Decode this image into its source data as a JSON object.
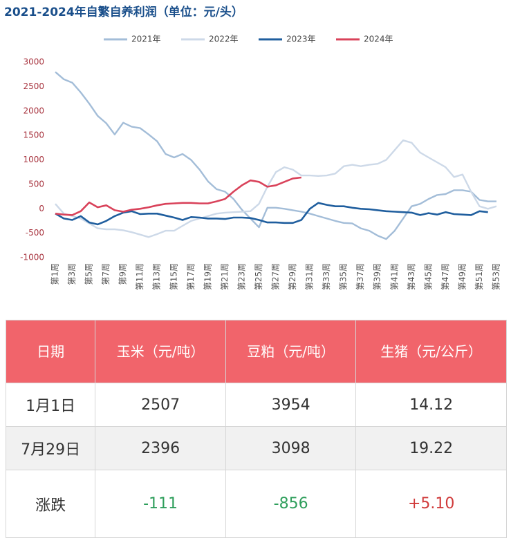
{
  "chart_data": {
    "type": "line",
    "title": "2021-2024年自繁自养利润（单位：元/头）",
    "categories": [
      "第1周",
      null,
      "第3周",
      null,
      "第5周",
      null,
      "第7周",
      null,
      "第9周",
      null,
      "第11周",
      null,
      "第13周",
      null,
      "第15周",
      null,
      "第17周",
      null,
      "第19周",
      null,
      "第21周",
      null,
      "第23周",
      null,
      "第25周",
      null,
      "第27周",
      null,
      "第29周",
      null,
      "第31周",
      null,
      "第33周",
      null,
      "第35周",
      null,
      "第37周",
      null,
      "第39周",
      null,
      "第41周",
      null,
      "第43周",
      null,
      "第45周",
      null,
      "第47周",
      null,
      "第49周",
      null,
      "第51周",
      null,
      "第53周"
    ],
    "series": [
      {
        "name": "2021年",
        "color": "#a3bdd8",
        "values": [
          2800,
          2650,
          2580,
          2380,
          2150,
          1900,
          1750,
          1520,
          1760,
          1680,
          1650,
          1520,
          1380,
          1120,
          1050,
          1120,
          1000,
          800,
          560,
          400,
          350,
          200,
          -20,
          -200,
          -380,
          20,
          20,
          0,
          -30,
          -60,
          -100,
          -150,
          -200,
          -250,
          -290,
          -300,
          -400,
          -450,
          -550,
          -620,
          -450,
          -200,
          50,
          100,
          200,
          280,
          300,
          380,
          380,
          350,
          180,
          150,
          150
        ]
      },
      {
        "name": "2022年",
        "color": "#cdd9e8",
        "values": [
          100,
          -100,
          -150,
          -200,
          -300,
          -400,
          -420,
          -420,
          -440,
          -480,
          -530,
          -580,
          -520,
          -450,
          -450,
          -350,
          -250,
          -200,
          -150,
          -100,
          -80,
          -70,
          -60,
          -50,
          100,
          450,
          750,
          850,
          800,
          680,
          680,
          670,
          680,
          720,
          870,
          900,
          870,
          900,
          920,
          1000,
          1200,
          1400,
          1350,
          1150,
          1050,
          950,
          850,
          650,
          700,
          350,
          50,
          0,
          50
        ]
      },
      {
        "name": "2023年",
        "color": "#1f5e9e",
        "values": [
          -100,
          -200,
          -230,
          -150,
          -280,
          -320,
          -250,
          -150,
          -80,
          -50,
          -110,
          -100,
          -100,
          -140,
          -180,
          -230,
          -170,
          -180,
          -200,
          -200,
          -210,
          -180,
          -180,
          -190,
          -230,
          -280,
          -280,
          -290,
          -290,
          -230,
          0,
          120,
          80,
          50,
          50,
          20,
          0,
          -10,
          -30,
          -50,
          -60,
          -70,
          -80,
          -130,
          -90,
          -120,
          -70,
          -110,
          -120,
          -130,
          -50,
          -70,
          null
        ]
      },
      {
        "name": "2024年",
        "color": "#d9425a",
        "values": [
          -100,
          -120,
          -130,
          -50,
          130,
          30,
          70,
          -30,
          -60,
          -20,
          0,
          30,
          70,
          100,
          110,
          120,
          120,
          110,
          110,
          150,
          200,
          350,
          480,
          580,
          550,
          450,
          480,
          550,
          620,
          640,
          null,
          null,
          null,
          null,
          null,
          null,
          null,
          null,
          null,
          null,
          null,
          null,
          null,
          null,
          null,
          null,
          null,
          null,
          null,
          null,
          null,
          null,
          null
        ]
      }
    ],
    "ylim": [
      -1000,
      3000
    ],
    "yticks": [
      -1000,
      -500,
      0,
      500,
      1000,
      1500,
      2000,
      2500,
      3000
    ],
    "grid": false
  },
  "table": {
    "header": [
      "日期",
      "玉米（元/吨）",
      "豆粕（元/吨）",
      "生猪（元/公斤）"
    ],
    "rows": [
      [
        "1月1日",
        "2507",
        "3954",
        "14.12"
      ],
      [
        "7月29日",
        "2396",
        "3098",
        "19.22"
      ],
      [
        "涨跌",
        "-111",
        "-856",
        "+5.10"
      ]
    ]
  }
}
